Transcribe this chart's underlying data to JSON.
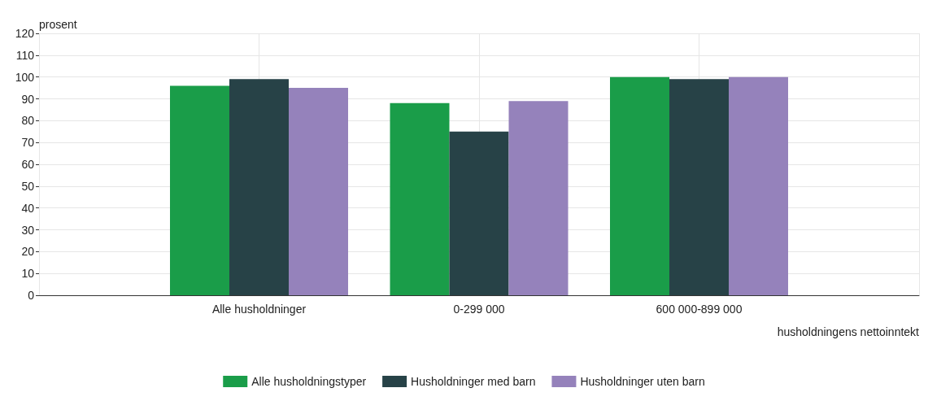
{
  "chart_data": {
    "type": "bar",
    "categories": [
      "Alle husholdninger",
      "0-299 000",
      "600 000-899 000"
    ],
    "series": [
      {
        "name": "Alle husholdningstyper",
        "color": "#1a9d49",
        "values": [
          96,
          88,
          100
        ]
      },
      {
        "name": "Husholdninger med barn",
        "color": "#274247",
        "values": [
          99,
          75,
          99
        ]
      },
      {
        "name": "Husholdninger uten barn",
        "color": "#9582bb",
        "values": [
          95,
          89,
          100
        ]
      }
    ],
    "ylabel": "prosent",
    "xlabel": "husholdningens nettoinntekt",
    "ylim": [
      0,
      120
    ],
    "yticks": [
      0,
      10,
      20,
      30,
      40,
      50,
      60,
      70,
      80,
      90,
      100,
      110,
      120
    ],
    "grid": true,
    "legend": "bottom"
  }
}
